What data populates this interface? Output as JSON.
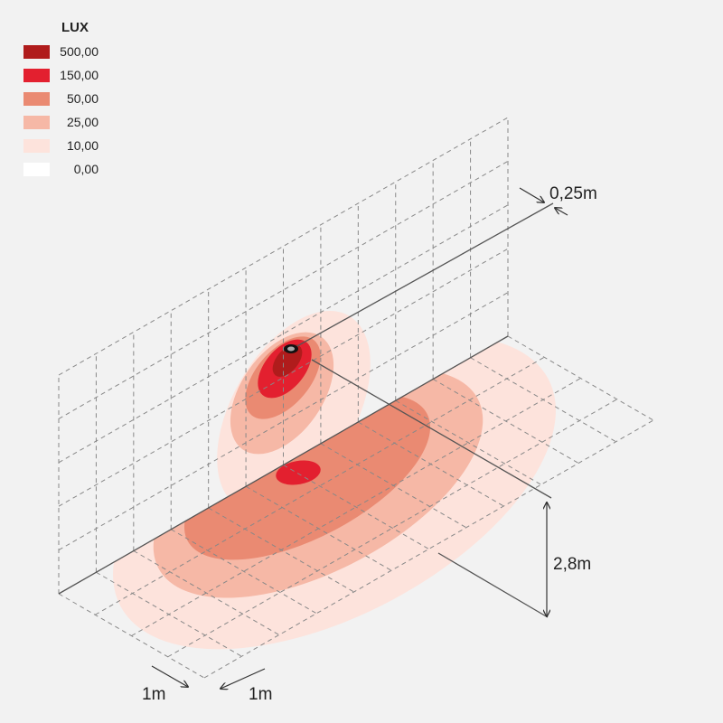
{
  "legend": {
    "title": "LUX",
    "items": [
      "500,00",
      "150,00",
      "50,00",
      "25,00",
      "10,00",
      "0,00"
    ]
  },
  "dimensions": {
    "offset": "0,25m",
    "height": "2,8m",
    "grid_x": "1m",
    "grid_y": "1m"
  }
}
